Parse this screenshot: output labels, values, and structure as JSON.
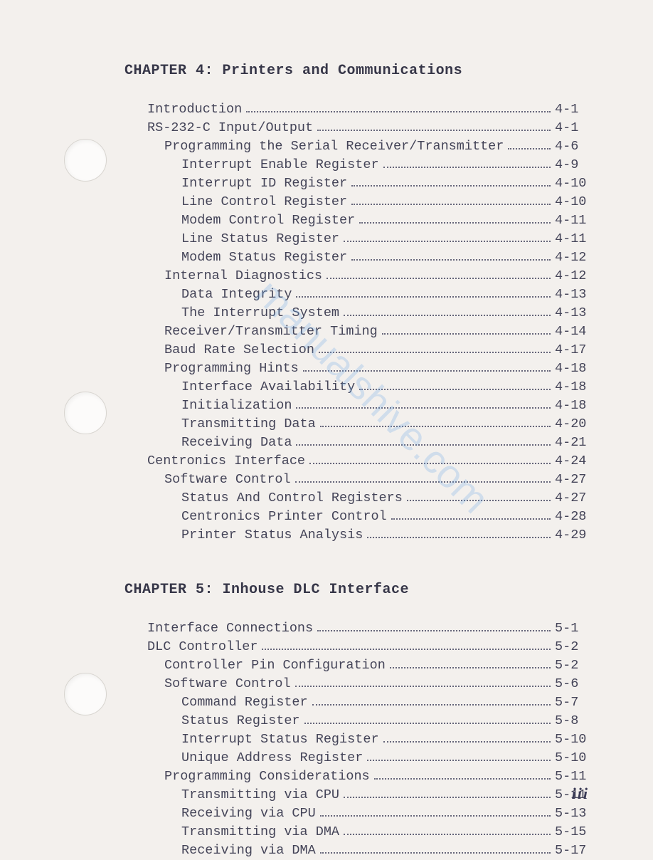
{
  "page_number": "iii",
  "text_color": "#3a3a50",
  "background_color": "#f3f0ed",
  "font_family": "Courier New",
  "base_font_size": 18.5,
  "line_height": 26,
  "watermark_color": "#6aa8e8",
  "chapters": [
    {
      "title": "CHAPTER 4: Printers and Communications",
      "entries": [
        {
          "indent": 0,
          "label": "Introduction",
          "page": "4-1"
        },
        {
          "indent": 0,
          "label": "RS-232-C Input/Output",
          "page": "4-1"
        },
        {
          "indent": 1,
          "label": "Programming the Serial Receiver/Transmitter",
          "page": "4-6"
        },
        {
          "indent": 2,
          "label": "Interrupt Enable Register",
          "page": "4-9"
        },
        {
          "indent": 2,
          "label": "Interrupt ID Register",
          "page": "4-10"
        },
        {
          "indent": 2,
          "label": "Line Control Register",
          "page": "4-10"
        },
        {
          "indent": 2,
          "label": "Modem Control Register",
          "page": "4-11"
        },
        {
          "indent": 2,
          "label": "Line Status Register",
          "page": "4-11"
        },
        {
          "indent": 2,
          "label": "Modem Status Register",
          "page": "4-12"
        },
        {
          "indent": 1,
          "label": "Internal Diagnostics",
          "page": "4-12"
        },
        {
          "indent": 2,
          "label": "Data Integrity",
          "page": "4-13"
        },
        {
          "indent": 2,
          "label": "The Interrupt System",
          "page": "4-13"
        },
        {
          "indent": 1,
          "label": "Receiver/Transmitter Timing",
          "page": "4-14"
        },
        {
          "indent": 1,
          "label": "Baud Rate Selection",
          "page": "4-17"
        },
        {
          "indent": 1,
          "label": "Programming Hints",
          "page": "4-18"
        },
        {
          "indent": 2,
          "label": "Interface Availability",
          "page": "4-18"
        },
        {
          "indent": 2,
          "label": "Initialization",
          "page": "4-18"
        },
        {
          "indent": 2,
          "label": "Transmitting Data",
          "page": "4-20"
        },
        {
          "indent": 2,
          "label": "Receiving Data",
          "page": "4-21"
        },
        {
          "indent": 0,
          "label": "Centronics Interface",
          "page": "4-24"
        },
        {
          "indent": 1,
          "label": "Software Control",
          "page": "4-27"
        },
        {
          "indent": 2,
          "label": "Status And Control Registers",
          "page": "4-27"
        },
        {
          "indent": 2,
          "label": "Centronics Printer Control",
          "page": "4-28"
        },
        {
          "indent": 2,
          "label": "Printer Status Analysis",
          "page": "4-29"
        }
      ]
    },
    {
      "title": "CHAPTER 5: Inhouse DLC Interface",
      "entries": [
        {
          "indent": 0,
          "label": "Interface Connections",
          "page": "5-1"
        },
        {
          "indent": 0,
          "label": "DLC Controller",
          "page": "5-2"
        },
        {
          "indent": 1,
          "label": "Controller Pin Configuration",
          "page": "5-2"
        },
        {
          "indent": 1,
          "label": "Software Control",
          "page": "5-6"
        },
        {
          "indent": 2,
          "label": "Command Register",
          "page": "5-7"
        },
        {
          "indent": 2,
          "label": "Status Register",
          "page": "5-8"
        },
        {
          "indent": 2,
          "label": "Interrupt Status Register",
          "page": "5-10"
        },
        {
          "indent": 2,
          "label": "Unique Address Register",
          "page": "5-10"
        },
        {
          "indent": 1,
          "label": "Programming Considerations",
          "page": "5-11"
        },
        {
          "indent": 2,
          "label": "Transmitting via CPU",
          "page": "5-11"
        },
        {
          "indent": 2,
          "label": "Receiving via CPU",
          "page": "5-13"
        },
        {
          "indent": 2,
          "label": "Transmitting via DMA",
          "page": "5-15"
        },
        {
          "indent": 2,
          "label": "Receiving via DMA",
          "page": "5-17"
        }
      ]
    }
  ]
}
